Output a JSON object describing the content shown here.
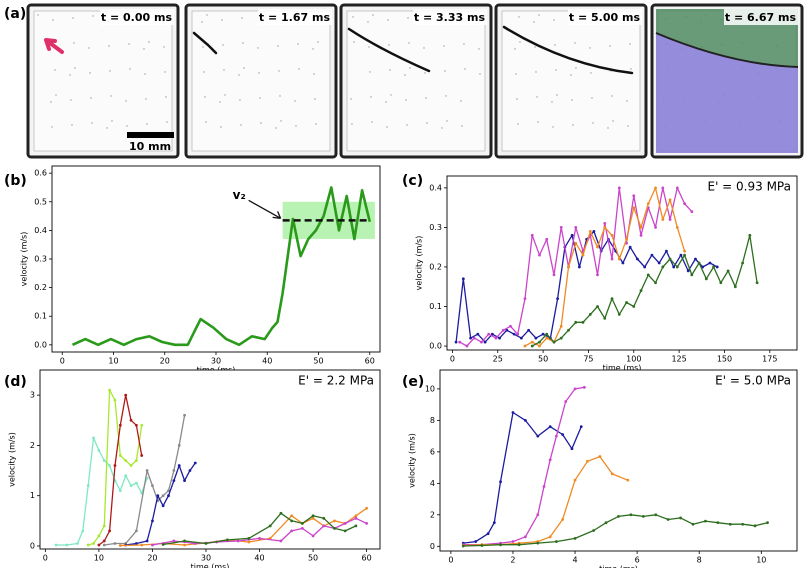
{
  "panel_a": {
    "label": "(a)",
    "frames": [
      "t = 0.00 ms",
      "t = 1.67 ms",
      "t = 3.33 ms",
      "t = 5.00 ms",
      "t = 6.67 ms"
    ],
    "scale_bar": "10 mm"
  },
  "chart_data": [
    {
      "type": "line",
      "panel_label": "(b)",
      "xlabel": "time (ms)",
      "ylabel": "velocity (m/s)",
      "annotation": "v₂",
      "xlim": [
        -2,
        62
      ],
      "ylim": [
        -0.025,
        0.625
      ],
      "xticks": [
        0,
        10,
        20,
        30,
        40,
        50,
        60
      ],
      "yticks": [
        {
          "value": 0,
          "label": "0.0"
        },
        0.1,
        0.2,
        0.3,
        0.4,
        0.5,
        0.6
      ],
      "band": {
        "x": [
          43,
          61
        ],
        "y": [
          0.37,
          0.5
        ]
      },
      "band_color": "#a8f0a0",
      "v2": 0.435,
      "markers": false,
      "series": [
        {
          "color": "#2a9a1a",
          "x": [
            2,
            4.5,
            7,
            9.5,
            12,
            14.5,
            17,
            19.5,
            22,
            24.5,
            27,
            29.5,
            32,
            34.5,
            37,
            39.5,
            41,
            42,
            43,
            45,
            46.5,
            48,
            49.5,
            51,
            52.5,
            54,
            55.5,
            57,
            58.5,
            60
          ],
          "values": [
            0,
            0.02,
            0,
            0.02,
            0,
            0.02,
            0.03,
            0.01,
            0,
            0,
            0.09,
            0.06,
            0.02,
            0,
            0.03,
            0.02,
            0.06,
            0.08,
            0.18,
            0.44,
            0.31,
            0.37,
            0.4,
            0.45,
            0.55,
            0.4,
            0.52,
            0.37,
            0.54,
            0.43
          ]
        }
      ]
    },
    {
      "type": "line",
      "panel_label": "(c)",
      "xlabel": "time (ms)",
      "ylabel": "velocity (m/s)",
      "annotation": "E' = 0.93 MPa",
      "xlim": [
        -3,
        190
      ],
      "ylim": [
        -0.01,
        0.43
      ],
      "xticks": [
        0,
        25,
        50,
        75,
        100,
        125,
        150,
        175
      ],
      "yticks": [
        {
          "value": 0,
          "label": "0.0"
        },
        0.1,
        0.2,
        0.3,
        0.4
      ],
      "markers": true,
      "series": [
        {
          "color": "#1c1ca0",
          "x": [
            2,
            6,
            10,
            14,
            18,
            22,
            26,
            30,
            34,
            38,
            42,
            46,
            50,
            54,
            58,
            62,
            66,
            70,
            74,
            78,
            82,
            86,
            90,
            94,
            98,
            102,
            106,
            110,
            114,
            118,
            122,
            126,
            130,
            134,
            138,
            142,
            146
          ],
          "values": [
            0.01,
            0.17,
            0.02,
            0.03,
            0.01,
            0.03,
            0.02,
            0.04,
            0.03,
            0.02,
            0.04,
            0.02,
            0.03,
            0.02,
            0.12,
            0.25,
            0.28,
            0.2,
            0.27,
            0.29,
            0.24,
            0.27,
            0.24,
            0.21,
            0.25,
            0.22,
            0.2,
            0.23,
            0.21,
            0.24,
            0.2,
            0.23,
            0.19,
            0.22,
            0.2,
            0.21,
            0.2
          ]
        },
        {
          "color": "#cc44cc",
          "x": [
            4,
            8,
            12,
            16,
            20,
            24,
            28,
            32,
            36,
            40,
            44,
            48,
            52,
            56,
            60,
            64,
            68,
            72,
            76,
            80,
            84,
            88,
            92,
            96,
            100,
            104,
            108,
            112,
            116,
            120,
            124,
            128,
            132
          ],
          "values": [
            0.01,
            0,
            0.02,
            0.01,
            0.03,
            0.02,
            0.04,
            0.05,
            0.03,
            0.12,
            0.28,
            0.23,
            0.27,
            0.18,
            0.3,
            0.2,
            0.3,
            0.24,
            0.28,
            0.18,
            0.31,
            0.22,
            0.4,
            0.26,
            0.38,
            0.28,
            0.35,
            0.3,
            0.4,
            0.32,
            0.4,
            0.36,
            0.34
          ]
        },
        {
          "color": "#f08a24",
          "x": [
            40,
            44,
            48,
            52,
            56,
            60,
            64,
            68,
            72,
            76,
            80,
            84,
            88,
            92,
            96,
            100,
            104,
            108,
            112,
            116,
            120,
            124,
            128
          ],
          "values": [
            0,
            0.01,
            0,
            0.02,
            0.01,
            0.05,
            0.2,
            0.26,
            0.23,
            0.29,
            0.25,
            0.3,
            0.28,
            0.22,
            0.27,
            0.35,
            0.3,
            0.36,
            0.4,
            0.32,
            0.37,
            0.3,
            0.24
          ]
        },
        {
          "color": "#2d6e1e",
          "x": [
            44,
            48,
            52,
            56,
            60,
            64,
            68,
            72,
            76,
            80,
            84,
            88,
            92,
            96,
            100,
            104,
            108,
            112,
            116,
            120,
            124,
            128,
            132,
            136,
            140,
            144,
            148,
            152,
            156,
            160,
            164,
            168
          ],
          "values": [
            0,
            0.01,
            0.03,
            0.01,
            0.02,
            0.04,
            0.06,
            0.06,
            0.08,
            0.1,
            0.07,
            0.12,
            0.08,
            0.11,
            0.1,
            0.14,
            0.18,
            0.16,
            0.2,
            0.22,
            0.2,
            0.23,
            0.18,
            0.21,
            0.17,
            0.2,
            0.16,
            0.19,
            0.15,
            0.21,
            0.28,
            0.16
          ]
        }
      ]
    },
    {
      "type": "line",
      "panel_label": "(d)",
      "xlabel": "time (ms)",
      "ylabel": "velocity (m/s)",
      "annotation": "E' = 2.2 MPa",
      "xlim": [
        -1,
        62.5
      ],
      "ylim": [
        -0.06,
        3.5
      ],
      "xticks": [
        0,
        10,
        20,
        30,
        40,
        50,
        60
      ],
      "yticks": [
        0,
        1,
        2,
        3
      ],
      "markers": true,
      "series": [
        {
          "color": "#80e8c0",
          "x": [
            2,
            4,
            6,
            7,
            8,
            9,
            10,
            11,
            12,
            13,
            14,
            15,
            16,
            17,
            18,
            19
          ],
          "values": [
            0.02,
            0.02,
            0.05,
            0.3,
            1.2,
            2.15,
            1.9,
            1.7,
            1.6,
            1.3,
            1.1,
            1.4,
            1.2,
            1.25,
            1.05,
            1.35
          ]
        },
        {
          "color": "#a8e830",
          "x": [
            8,
            9,
            10,
            11,
            12,
            13,
            14,
            15,
            16,
            17,
            18
          ],
          "values": [
            0.02,
            0.05,
            0.2,
            0.4,
            3.1,
            2.9,
            1.8,
            1.7,
            1.6,
            1.7,
            2.4
          ]
        },
        {
          "color": "#b01818",
          "x": [
            10,
            11,
            12,
            13,
            14,
            15,
            16,
            17,
            18
          ],
          "values": [
            0.02,
            0.1,
            0.3,
            1.6,
            2.4,
            3.0,
            2.5,
            2.4,
            1.8
          ]
        },
        {
          "color": "#8a8a8a",
          "x": [
            11,
            13,
            15,
            17,
            19,
            20,
            21,
            22,
            23,
            24,
            25,
            26
          ],
          "values": [
            0.02,
            0.05,
            0.05,
            0.3,
            1.5,
            1.2,
            0.9,
            1.0,
            1.1,
            1.5,
            2.0,
            2.6
          ]
        },
        {
          "color": "#1c1ca0",
          "x": [
            15,
            17,
            19,
            20,
            21,
            22,
            23,
            24,
            25,
            26,
            27,
            28
          ],
          "values": [
            0.02,
            0.05,
            0.1,
            0.5,
            1.0,
            0.8,
            1.0,
            1.3,
            1.6,
            1.3,
            1.5,
            1.65
          ]
        },
        {
          "color": "#f08a24",
          "x": [
            14,
            18,
            22,
            26,
            30,
            34,
            38,
            42,
            46,
            48,
            50,
            52,
            54,
            56,
            58,
            60
          ],
          "values": [
            0.01,
            0.02,
            0.05,
            0.02,
            0.06,
            0.12,
            0.08,
            0.15,
            0.6,
            0.45,
            0.55,
            0.4,
            0.5,
            0.45,
            0.6,
            0.75
          ]
        },
        {
          "color": "#cc44cc",
          "x": [
            20,
            24,
            28,
            32,
            36,
            40,
            44,
            46,
            48,
            50,
            52,
            54,
            56,
            58,
            60
          ],
          "values": [
            0.02,
            0.1,
            0.05,
            0.08,
            0.1,
            0.15,
            0.1,
            0.3,
            0.35,
            0.2,
            0.4,
            0.35,
            0.45,
            0.55,
            0.45
          ]
        },
        {
          "color": "#2d6e1e",
          "x": [
            22,
            26,
            30,
            34,
            38,
            42,
            44,
            46,
            48,
            50,
            52,
            54,
            56,
            58
          ],
          "values": [
            0.03,
            0.1,
            0.05,
            0.12,
            0.15,
            0.4,
            0.65,
            0.5,
            0.45,
            0.6,
            0.55,
            0.35,
            0.3,
            0.4
          ]
        }
      ]
    },
    {
      "type": "line",
      "panel_label": "(e)",
      "xlabel": "time (ms)",
      "ylabel": "velocity (m/s)",
      "annotation": "E' = 5.0 MPa",
      "xlim": [
        -0.35,
        11.15
      ],
      "ylim": [
        -0.3,
        11.2
      ],
      "xticks": [
        0,
        2,
        4,
        6,
        8,
        10
      ],
      "yticks": [
        0,
        2,
        4,
        6,
        8,
        10
      ],
      "markers": true,
      "series": [
        {
          "color": "#1c1ca0",
          "x": [
            0.4,
            0.8,
            1.2,
            1.4,
            1.6,
            2.0,
            2.4,
            2.8,
            3.2,
            3.6,
            3.9,
            4.2
          ],
          "values": [
            0.2,
            0.3,
            0.8,
            1.5,
            4.1,
            8.5,
            8.0,
            7.0,
            7.6,
            7.1,
            6.2,
            7.6
          ]
        },
        {
          "color": "#cc44cc",
          "x": [
            0.4,
            1.0,
            1.6,
            2.0,
            2.4,
            2.8,
            3.0,
            3.2,
            3.4,
            3.7,
            4.0,
            4.3
          ],
          "values": [
            0.1,
            0.1,
            0.2,
            0.3,
            0.6,
            2.0,
            3.8,
            5.5,
            7.0,
            9.2,
            10.0,
            10.1
          ]
        },
        {
          "color": "#f08a24",
          "x": [
            0.4,
            1.0,
            1.6,
            2.2,
            2.8,
            3.2,
            3.6,
            4.0,
            4.4,
            4.8,
            5.2,
            5.7
          ],
          "values": [
            0.05,
            0.1,
            0.1,
            0.2,
            0.3,
            0.6,
            1.7,
            4.2,
            5.4,
            5.7,
            4.6,
            4.2
          ]
        },
        {
          "color": "#2d6e1e",
          "x": [
            0.4,
            1,
            1.6,
            2.2,
            2.8,
            3.4,
            4,
            4.6,
            5,
            5.4,
            5.8,
            6.2,
            6.6,
            7,
            7.4,
            7.8,
            8.2,
            8.6,
            9,
            9.4,
            9.8,
            10.2
          ],
          "values": [
            0.02,
            0.05,
            0.1,
            0.1,
            0.2,
            0.3,
            0.5,
            1.0,
            1.5,
            1.9,
            2.0,
            1.9,
            2.0,
            1.7,
            1.8,
            1.4,
            1.6,
            1.5,
            1.4,
            1.4,
            1.3,
            1.5
          ]
        }
      ]
    }
  ]
}
